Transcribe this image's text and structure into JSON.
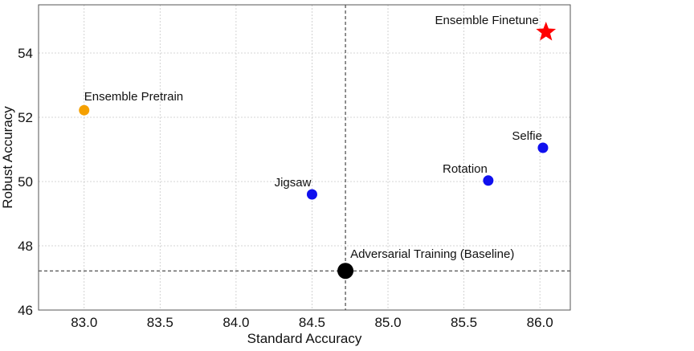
{
  "chart_data": {
    "type": "scatter",
    "xlabel": "Standard Accuracy",
    "ylabel": "Robust Accuracy",
    "xlim": [
      82.7,
      86.2
    ],
    "ylim": [
      46,
      55.5
    ],
    "xticks": [
      83.0,
      83.5,
      84.0,
      84.5,
      85.0,
      85.5,
      86.0
    ],
    "xtick_labels": [
      "83.0",
      "83.5",
      "84.0",
      "84.5",
      "85.0",
      "85.5",
      "86.0"
    ],
    "yticks": [
      46,
      48,
      50,
      52,
      54
    ],
    "ytick_labels": [
      "46",
      "48",
      "50",
      "52",
      "54"
    ],
    "grid": true,
    "reference_lines": {
      "x": 84.72,
      "y": 47.22
    },
    "points": [
      {
        "label": "Ensemble Finetune",
        "x": 86.04,
        "y": 54.65,
        "color": "#ff0000",
        "marker": "star",
        "label_pos": "left"
      },
      {
        "label": "Ensemble Pretrain",
        "x": 83.0,
        "y": 52.22,
        "color": "#f5a000",
        "marker": "circle",
        "label_pos": "above"
      },
      {
        "label": "Selfie",
        "x": 86.02,
        "y": 51.05,
        "color": "#1010ee",
        "marker": "circle",
        "label_pos": "above"
      },
      {
        "label": "Rotation",
        "x": 85.66,
        "y": 50.03,
        "color": "#1010ee",
        "marker": "circle",
        "label_pos": "above"
      },
      {
        "label": "Jigsaw",
        "x": 84.5,
        "y": 49.6,
        "color": "#1010ee",
        "marker": "circle",
        "label_pos": "above"
      },
      {
        "label": "Adversarial Training (Baseline)",
        "x": 84.72,
        "y": 47.22,
        "color": "#000000",
        "marker": "big-circle",
        "label_pos": "above"
      }
    ]
  }
}
